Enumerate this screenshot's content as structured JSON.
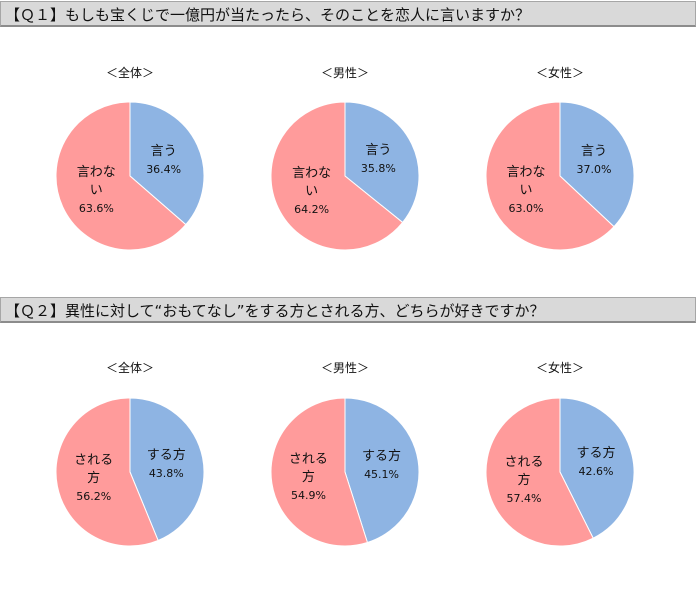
{
  "questions": [
    {
      "title": "【Ｑ１】もしも宝くじで一億円が当たったら、そのことを恋人に言いますか？"
    },
    {
      "title": "【Ｑ２】異性に対して“おもてなし”をする方とされる方、どちらが好きですか？"
    }
  ],
  "colors": {
    "blue": "#8eb4e3",
    "pink": "#ff9b9b"
  },
  "chart_data": [
    {
      "type": "pie",
      "question": 0,
      "title": "＜全体＞",
      "labels": [
        "言う",
        "言わない"
      ],
      "values": [
        36.4,
        63.6
      ]
    },
    {
      "type": "pie",
      "question": 0,
      "title": "＜男性＞",
      "labels": [
        "言う",
        "言わない"
      ],
      "values": [
        35.8,
        64.2
      ]
    },
    {
      "type": "pie",
      "question": 0,
      "title": "＜女性＞",
      "labels": [
        "言う",
        "言わない"
      ],
      "values": [
        37.0,
        63.0
      ]
    },
    {
      "type": "pie",
      "question": 1,
      "title": "＜全体＞",
      "labels": [
        "する方",
        "される方"
      ],
      "values": [
        43.8,
        56.2
      ]
    },
    {
      "type": "pie",
      "question": 1,
      "title": "＜男性＞",
      "labels": [
        "する方",
        "される方"
      ],
      "values": [
        45.1,
        54.9
      ]
    },
    {
      "type": "pie",
      "question": 1,
      "title": "＜女性＞",
      "labels": [
        "する方",
        "される方"
      ],
      "values": [
        42.6,
        57.4
      ]
    }
  ]
}
